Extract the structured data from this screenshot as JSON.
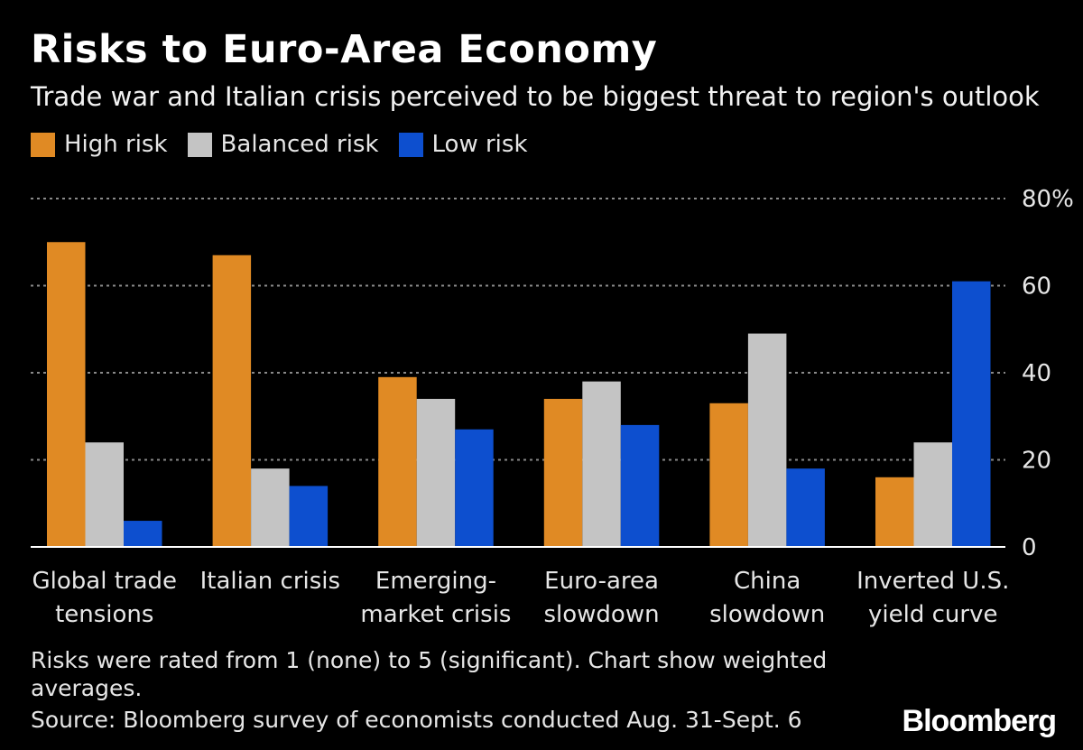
{
  "header": {
    "title": "Risks to Euro-Area Economy",
    "subtitle": "Trade war and Italian crisis perceived to be biggest threat to region's outlook"
  },
  "colors": {
    "high": "#E08A24",
    "balanced": "#C4C4C4",
    "low": "#0D4FCF",
    "grid": "#8a8a8a",
    "background": "#000000"
  },
  "chart_data": {
    "type": "bar",
    "categories": [
      [
        "Global trade",
        "tensions"
      ],
      [
        "Italian crisis"
      ],
      [
        "Emerging-",
        "market crisis"
      ],
      [
        "Euro-area",
        "slowdown"
      ],
      [
        "China",
        "slowdown"
      ],
      [
        "Inverted U.S.",
        "yield curve"
      ]
    ],
    "series": [
      {
        "name": "High risk",
        "key": "high",
        "values": [
          70,
          67,
          39,
          34,
          33,
          16
        ]
      },
      {
        "name": "Balanced risk",
        "key": "balanced",
        "values": [
          24,
          18,
          34,
          38,
          49,
          24
        ]
      },
      {
        "name": "Low risk",
        "key": "low",
        "values": [
          6,
          14,
          27,
          28,
          18,
          61
        ]
      }
    ],
    "ylim": [
      0,
      80
    ],
    "yticks": [
      {
        "value": 0,
        "label": "0"
      },
      {
        "value": 20,
        "label": "20"
      },
      {
        "value": 40,
        "label": "40"
      },
      {
        "value": 60,
        "label": "60"
      },
      {
        "value": 80,
        "label": "80%"
      }
    ],
    "grid": true,
    "legend_position": "top-left",
    "y_axis_side": "right"
  },
  "footer": {
    "note": "Risks were rated from 1 (none) to 5 (significant). Chart show weighted averages.",
    "source": "Source: Bloomberg survey of economists conducted Aug. 31-Sept. 6",
    "logo": "Bloomberg"
  }
}
